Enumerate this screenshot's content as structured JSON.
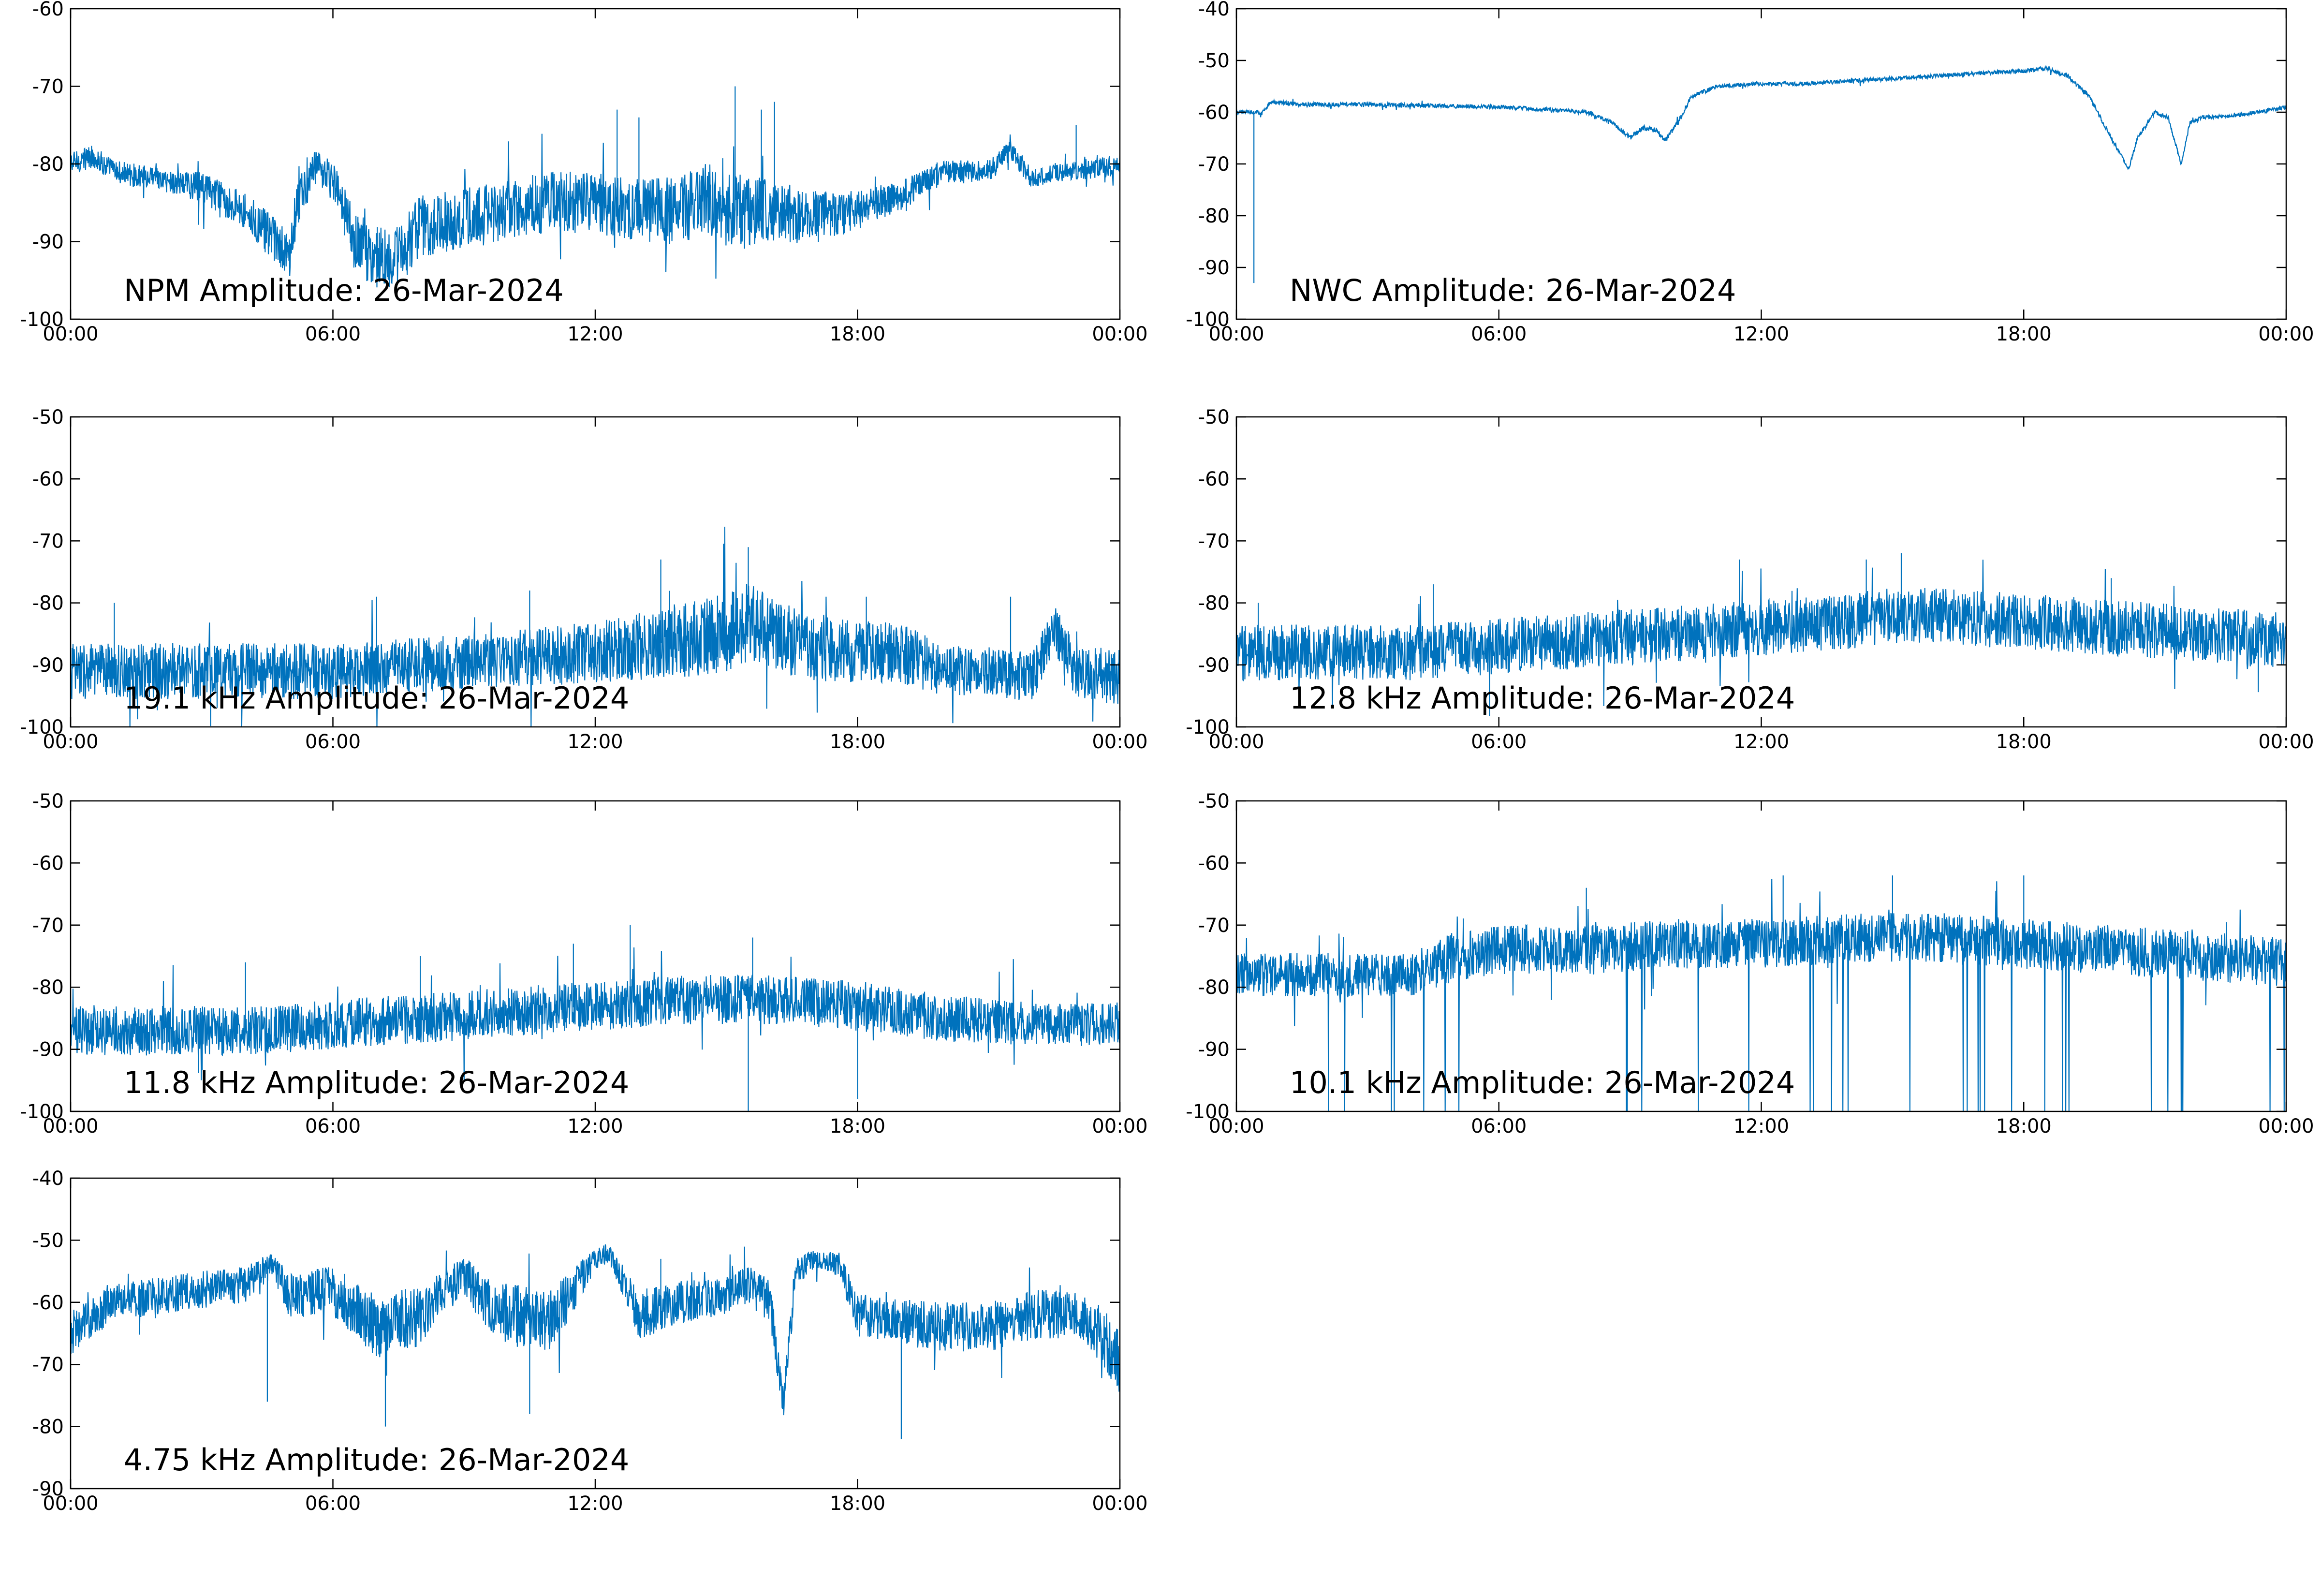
{
  "chart_data": [
    {
      "type": "line",
      "title": "NPM Amplitude: 26-Mar-2024",
      "xticks": [
        "00:00",
        "06:00",
        "12:00",
        "18:00",
        "00:00"
      ],
      "ylim": [
        -100,
        -60
      ],
      "yticks": [
        -60,
        -70,
        -80,
        -90,
        -100
      ],
      "grid": false,
      "series": [
        {
          "color": "#0072BD",
          "x": [
            0,
            0.5,
            1,
            2,
            3,
            4,
            4.5,
            5,
            5.2,
            5.5,
            6,
            6.5,
            7,
            7.5,
            8,
            9,
            10,
            11,
            12,
            13,
            14,
            14.5,
            15,
            15.5,
            16,
            17,
            18,
            19,
            20,
            21,
            21.5,
            22,
            22.5,
            23,
            24
          ],
          "y": [
            -80,
            -79,
            -81,
            -82,
            -83,
            -86,
            -89,
            -92,
            -84,
            -81,
            -82,
            -90,
            -92,
            -92,
            -88,
            -87,
            -86,
            -85,
            -85,
            -86,
            -86,
            -84,
            -86,
            -86,
            -86,
            -87,
            -86,
            -84,
            -81,
            -81,
            -78,
            -82,
            -81,
            -81,
            -80
          ],
          "noise": [
            1.5,
            1.5,
            1.5,
            1.5,
            2.0,
            2.5,
            3.0,
            3.0,
            4.0,
            3.0,
            2.5,
            4.0,
            4.0,
            4.0,
            4.0,
            4.0,
            4.0,
            4.0,
            4.0,
            4.0,
            4.5,
            4.5,
            5.0,
            4.5,
            4.0,
            3.5,
            2.5,
            2.0,
            1.5,
            1.5,
            1.5,
            1.2,
            1.2,
            1.2,
            1.5
          ],
          "spikes": [
            [
              12.5,
              -73
            ],
            [
              15.2,
              -70
            ],
            [
              16.1,
              -72
            ],
            [
              23,
              -75
            ],
            [
              24,
              -73
            ],
            [
              13,
              -74
            ],
            [
              15.8,
              -73
            ]
          ]
        }
      ]
    },
    {
      "type": "line",
      "title": "NWC Amplitude: 26-Mar-2024",
      "xticks": [
        "00:00",
        "06:00",
        "12:00",
        "18:00",
        "00:00"
      ],
      "ylim": [
        -100,
        -40
      ],
      "yticks": [
        -40,
        -50,
        -60,
        -70,
        -80,
        -90,
        -100
      ],
      "grid": false,
      "series": [
        {
          "color": "#0072BD",
          "x": [
            0,
            0.6,
            0.8,
            1.5,
            3,
            6,
            8,
            8.6,
            9,
            9.3,
            9.6,
            9.8,
            10.1,
            10.4,
            11,
            12,
            13,
            14,
            15,
            16,
            17,
            18,
            18.5,
            19,
            19.5,
            20,
            20.4,
            20.6,
            21,
            21.3,
            21.6,
            21.8,
            22.1,
            23,
            24
          ],
          "y": [
            -60,
            -60,
            -58,
            -58.5,
            -58.5,
            -59,
            -60,
            -62,
            -65,
            -63,
            -63.5,
            -65.5,
            -62,
            -57,
            -55,
            -54.5,
            -54.5,
            -54,
            -53.5,
            -53,
            -52.5,
            -52,
            -51.5,
            -53,
            -57,
            -65,
            -71,
            -65,
            -60,
            -61,
            -70,
            -62,
            -61,
            -60.5,
            -59
          ],
          "noise": [
            0.4,
            0.4,
            0.4,
            0.4,
            0.4,
            0.4,
            0.4,
            0.4,
            0.5,
            0.5,
            0.5,
            0.5,
            0.5,
            0.4,
            0.4,
            0.4,
            0.4,
            0.4,
            0.4,
            0.4,
            0.4,
            0.4,
            0.4,
            0.4,
            0.4,
            0.4,
            0.4,
            0.4,
            0.4,
            0.4,
            0.4,
            0.4,
            0.4,
            0.4,
            0.4
          ],
          "spikes": [
            [
              0.4,
              -93
            ]
          ]
        }
      ]
    },
    {
      "type": "line",
      "title": "19.1 kHz Amplitude: 26-Mar-2024",
      "xticks": [
        "00:00",
        "06:00",
        "12:00",
        "18:00",
        "00:00"
      ],
      "ylim": [
        -100,
        -50
      ],
      "yticks": [
        -50,
        -60,
        -70,
        -80,
        -90,
        -100
      ],
      "grid": false,
      "series": [
        {
          "color": "#0072BD",
          "x": [
            0,
            2,
            4,
            6,
            8,
            10,
            12,
            13,
            14,
            15,
            15.5,
            16,
            17,
            18,
            19,
            20,
            21,
            22,
            22.5,
            23,
            24
          ],
          "y": [
            -91,
            -91,
            -91,
            -91,
            -90,
            -89,
            -88,
            -87,
            -86,
            -85,
            -83,
            -85,
            -87,
            -88,
            -88,
            -91,
            -91,
            -92,
            -84,
            -91,
            -92
          ],
          "noise": [
            4.5,
            4.5,
            4.5,
            4.5,
            4.5,
            4.5,
            5.0,
            5.5,
            6.0,
            6.5,
            6.5,
            6.0,
            5.5,
            5.0,
            5.0,
            4.0,
            4.0,
            4.0,
            4.0,
            4.5,
            4.5
          ],
          "spikes": [
            [
              15.5,
              -71
            ],
            [
              13.5,
              -73
            ],
            [
              10.5,
              -78
            ],
            [
              21.5,
              -79
            ],
            [
              1,
              -80
            ],
            [
              7,
              -79
            ],
            [
              18.2,
              -79
            ]
          ]
        }
      ]
    },
    {
      "type": "line",
      "title": "12.8 kHz Amplitude: 26-Mar-2024",
      "xticks": [
        "00:00",
        "06:00",
        "12:00",
        "18:00",
        "00:00"
      ],
      "ylim": [
        -100,
        -50
      ],
      "yticks": [
        -50,
        -60,
        -70,
        -80,
        -90,
        -100
      ],
      "grid": false,
      "series": [
        {
          "color": "#0072BD",
          "x": [
            0,
            2,
            4,
            6,
            8,
            10,
            12,
            14,
            15,
            16,
            18,
            20,
            22,
            24
          ],
          "y": [
            -88,
            -88,
            -88,
            -87,
            -86,
            -85,
            -84,
            -83,
            -82,
            -82,
            -83,
            -84,
            -85,
            -86
          ],
          "noise": [
            4.5,
            4.5,
            4.5,
            4.5,
            4.5,
            4.5,
            4.5,
            4.5,
            4.5,
            4.5,
            4.5,
            4.5,
            4.5,
            4.5
          ],
          "spikes": [
            [
              15.2,
              -72
            ],
            [
              11.5,
              -73
            ],
            [
              14.4,
              -73
            ],
            [
              20,
              -76
            ],
            [
              4.5,
              -77
            ],
            [
              0.5,
              -80
            ]
          ]
        }
      ]
    },
    {
      "type": "line",
      "title": "11.8 kHz Amplitude: 26-Mar-2024",
      "xticks": [
        "00:00",
        "06:00",
        "12:00",
        "18:00",
        "00:00"
      ],
      "ylim": [
        -100,
        -50
      ],
      "yticks": [
        -50,
        -60,
        -70,
        -80,
        -90,
        -100
      ],
      "grid": false,
      "series": [
        {
          "color": "#0072BD",
          "x": [
            0,
            2,
            4,
            6,
            8,
            10,
            12,
            14,
            16,
            18,
            20,
            22,
            24
          ],
          "y": [
            -87,
            -87,
            -87,
            -86,
            -85,
            -84,
            -83,
            -82,
            -82,
            -83,
            -85,
            -86,
            -86
          ],
          "noise": [
            4.0,
            4.0,
            4.0,
            4.0,
            4.0,
            4.0,
            4.0,
            4.0,
            4.0,
            4.0,
            3.8,
            3.5,
            3.5
          ],
          "spikes": [
            [
              12.8,
              -70
            ],
            [
              11.5,
              -73
            ],
            [
              15.6,
              -72
            ],
            [
              8,
              -75
            ],
            [
              4,
              -76
            ],
            [
              15.5,
              -100
            ],
            [
              18,
              -98
            ]
          ]
        }
      ]
    },
    {
      "type": "line",
      "title": "10.1 kHz Amplitude: 26-Mar-2024",
      "xticks": [
        "00:00",
        "06:00",
        "12:00",
        "18:00",
        "00:00"
      ],
      "ylim": [
        -100,
        -50
      ],
      "yticks": [
        -50,
        -60,
        -70,
        -80,
        -90,
        -100
      ],
      "grid": false,
      "series": [
        {
          "color": "#0072BD",
          "x": [
            0,
            2,
            4,
            5,
            6,
            8,
            10,
            12,
            14,
            16,
            18,
            20,
            22,
            24
          ],
          "y": [
            -78,
            -78,
            -78,
            -75,
            -74,
            -74,
            -73,
            -73,
            -72,
            -72,
            -73,
            -74,
            -75,
            -76
          ],
          "noise": [
            3.5,
            3.5,
            3.5,
            4.0,
            4.0,
            4.0,
            4.0,
            4.0,
            4.0,
            4.0,
            4.0,
            4.0,
            4.0,
            4.0
          ],
          "spikes": [
            [
              15,
              -62
            ],
            [
              12.5,
              -62
            ],
            [
              18,
              -62
            ],
            [
              8,
              -64
            ]
          ]
        }
      ]
    },
    {
      "type": "line",
      "title": "4.75 kHz Amplitude: 26-Mar-2024",
      "xticks": [
        "00:00",
        "06:00",
        "12:00",
        "18:00",
        "00:00"
      ],
      "ylim": [
        -90,
        -40
      ],
      "yticks": [
        -40,
        -50,
        -60,
        -70,
        -80,
        -90
      ],
      "grid": false,
      "series": [
        {
          "color": "#0072BD",
          "x": [
            0,
            1,
            2,
            3,
            4,
            4.6,
            5,
            6,
            7,
            8,
            8.6,
            9,
            9.5,
            10,
            11,
            11.5,
            12,
            12.3,
            13,
            14,
            15,
            15.5,
            16,
            16.3,
            16.6,
            17,
            17.6,
            18,
            19,
            20,
            21,
            22,
            23,
            23.6,
            24
          ],
          "y": [
            -65,
            -60,
            -59,
            -58,
            -57,
            -54,
            -59,
            -58,
            -64,
            -62,
            -58,
            -56,
            -60,
            -62,
            -63,
            -58,
            -53,
            -52,
            -62,
            -60,
            -59,
            -57,
            -60,
            -76,
            -55,
            -53,
            -54,
            -62,
            -63,
            -64,
            -64,
            -62,
            -62,
            -65,
            -70
          ],
          "noise": [
            3.5,
            3.0,
            3.0,
            3.0,
            3.0,
            2.0,
            3.5,
            4.0,
            5.0,
            5.0,
            3.5,
            3.5,
            4.0,
            5.0,
            5.0,
            3.5,
            2.0,
            1.5,
            4.0,
            3.5,
            3.0,
            3.0,
            3.5,
            3.0,
            2.5,
            1.5,
            2.0,
            3.5,
            3.5,
            4.0,
            4.0,
            4.0,
            4.0,
            5.0,
            5.0
          ],
          "spikes": [
            [
              7.2,
              -80
            ],
            [
              19,
              -82
            ],
            [
              4.5,
              -76
            ],
            [
              10.5,
              -78
            ],
            [
              13.5,
              -53
            ]
          ]
        }
      ]
    }
  ]
}
